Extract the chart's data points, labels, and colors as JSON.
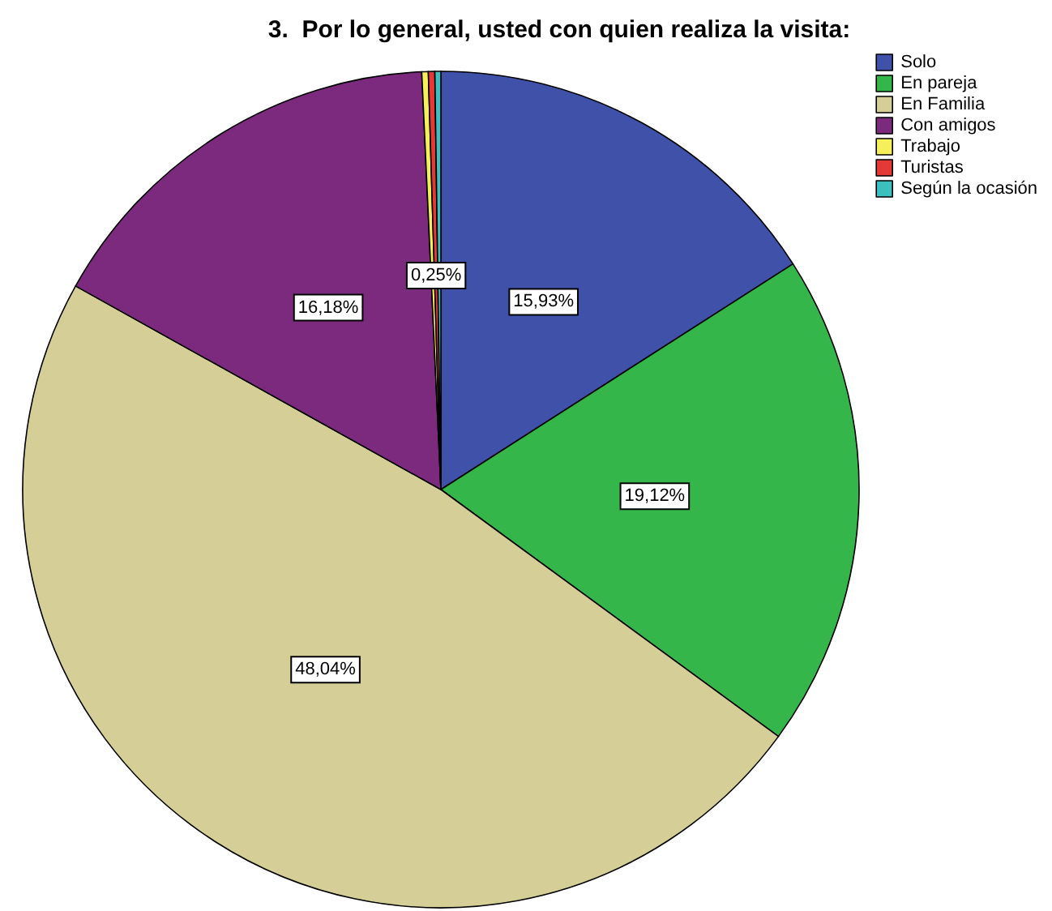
{
  "chart_data": {
    "type": "pie",
    "title": "3.  Por lo general, usted con quien realiza la visita:",
    "categories": [
      "Solo",
      "En pareja",
      "En Familia",
      "Con amigos",
      "Trabajo",
      "Turistas",
      "Según la ocasión"
    ],
    "values": [
      15.93,
      19.12,
      48.04,
      16.18,
      0.25,
      0.25,
      0.23
    ],
    "colors": [
      "#3f51a8",
      "#35b64a",
      "#d5cf97",
      "#7b2a7e",
      "#f5f05a",
      "#e53935",
      "#3cbfbf"
    ],
    "value_labels": [
      "15,93%",
      "19,12%",
      "48,04%",
      "16,18%",
      null,
      "0,25%",
      null
    ],
    "legend": "top right"
  }
}
